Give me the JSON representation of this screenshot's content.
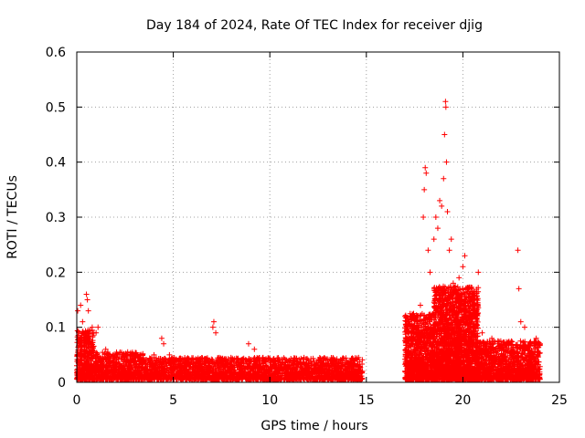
{
  "chart_data": {
    "type": "scatter",
    "title": "Day 184 of 2024, Rate Of TEC Index for receiver djig",
    "xlabel": "GPS time / hours",
    "ylabel": "ROTI / TECUs",
    "xlim": [
      0,
      25
    ],
    "ylim": [
      0,
      0.6
    ],
    "xticks": [
      0,
      5,
      10,
      15,
      20,
      25
    ],
    "yticks": [
      0,
      0.1,
      0.2,
      0.3,
      0.4,
      0.5,
      0.6
    ],
    "xtick_labels": [
      "0",
      "5",
      "10",
      "15",
      "20",
      "25"
    ],
    "ytick_labels": [
      "0",
      "0.1",
      "0.2",
      "0.3",
      "0.4",
      "0.5",
      "0.6"
    ],
    "grid": true,
    "marker": "+",
    "color": "#ff0000",
    "series": [
      {
        "name": "ROTI",
        "points": [
          [
            0.05,
            0.13
          ],
          [
            0.1,
            0.09
          ],
          [
            0.2,
            0.14
          ],
          [
            0.3,
            0.11
          ],
          [
            0.4,
            0.08
          ],
          [
            0.5,
            0.16
          ],
          [
            0.55,
            0.15
          ],
          [
            0.6,
            0.13
          ],
          [
            0.8,
            0.1
          ],
          [
            1.1,
            0.1
          ],
          [
            1.0,
            0.09
          ],
          [
            1.5,
            0.06
          ],
          [
            2.0,
            0.05
          ],
          [
            2.5,
            0.05
          ],
          [
            3.0,
            0.04
          ],
          [
            3.5,
            0.04
          ],
          [
            4.0,
            0.05
          ],
          [
            4.4,
            0.08
          ],
          [
            4.5,
            0.07
          ],
          [
            4.8,
            0.05
          ],
          [
            5.3,
            0.04
          ],
          [
            5.7,
            0.04
          ],
          [
            6.2,
            0.03
          ],
          [
            6.7,
            0.04
          ],
          [
            7.05,
            0.1
          ],
          [
            7.1,
            0.11
          ],
          [
            7.2,
            0.09
          ],
          [
            7.6,
            0.04
          ],
          [
            8.0,
            0.04
          ],
          [
            8.5,
            0.04
          ],
          [
            8.9,
            0.07
          ],
          [
            9.2,
            0.06
          ],
          [
            9.6,
            0.04
          ],
          [
            10.0,
            0.04
          ],
          [
            10.5,
            0.04
          ],
          [
            11.0,
            0.04
          ],
          [
            11.5,
            0.035
          ],
          [
            12.0,
            0.035
          ],
          [
            12.5,
            0.03
          ],
          [
            13.0,
            0.035
          ],
          [
            13.5,
            0.03
          ],
          [
            14.0,
            0.035
          ],
          [
            14.4,
            0.04
          ],
          [
            14.6,
            0.045
          ],
          [
            14.8,
            0.02
          ],
          [
            17.1,
            0.08
          ],
          [
            17.3,
            0.09
          ],
          [
            17.5,
            0.12
          ],
          [
            17.8,
            0.14
          ],
          [
            17.95,
            0.3
          ],
          [
            18.0,
            0.35
          ],
          [
            18.05,
            0.39
          ],
          [
            18.1,
            0.38
          ],
          [
            18.2,
            0.24
          ],
          [
            18.3,
            0.2
          ],
          [
            18.5,
            0.26
          ],
          [
            18.6,
            0.3
          ],
          [
            18.7,
            0.28
          ],
          [
            18.8,
            0.33
          ],
          [
            18.9,
            0.32
          ],
          [
            19.0,
            0.37
          ],
          [
            19.05,
            0.45
          ],
          [
            19.1,
            0.51
          ],
          [
            19.12,
            0.5
          ],
          [
            19.15,
            0.4
          ],
          [
            19.2,
            0.31
          ],
          [
            19.3,
            0.24
          ],
          [
            19.4,
            0.26
          ],
          [
            19.5,
            0.18
          ],
          [
            19.8,
            0.19
          ],
          [
            20.0,
            0.21
          ],
          [
            20.1,
            0.23
          ],
          [
            20.3,
            0.17
          ],
          [
            20.5,
            0.16
          ],
          [
            20.8,
            0.2
          ],
          [
            21.0,
            0.09
          ],
          [
            21.5,
            0.08
          ],
          [
            22.0,
            0.06
          ],
          [
            22.5,
            0.06
          ],
          [
            22.85,
            0.24
          ],
          [
            22.9,
            0.17
          ],
          [
            23.0,
            0.11
          ],
          [
            23.2,
            0.1
          ],
          [
            23.5,
            0.07
          ],
          [
            23.8,
            0.08
          ],
          [
            24.0,
            0.07
          ]
        ]
      }
    ],
    "dense_bands": [
      {
        "x_range": [
          0,
          0.9
        ],
        "typical_max": 0.09
      },
      {
        "x_range": [
          0.9,
          3.5
        ],
        "typical_max": 0.05
      },
      {
        "x_range": [
          3.5,
          14.8
        ],
        "typical_max": 0.04
      },
      {
        "x_range": [
          17.0,
          18.5
        ],
        "typical_max": 0.12
      },
      {
        "x_range": [
          18.5,
          20.8
        ],
        "typical_max": 0.17
      },
      {
        "x_range": [
          20.8,
          24.0
        ],
        "typical_max": 0.07
      }
    ]
  }
}
